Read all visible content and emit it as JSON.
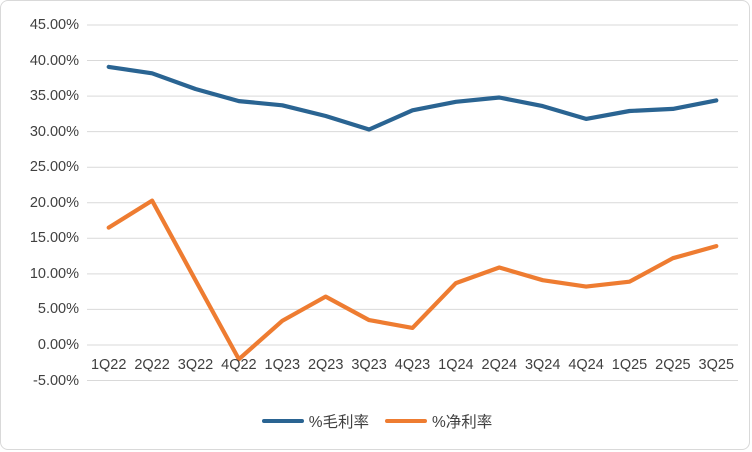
{
  "chart_data": {
    "type": "line",
    "title": "",
    "xlabel": "",
    "ylabel": "",
    "categories": [
      "1Q22",
      "2Q22",
      "3Q22",
      "4Q22",
      "1Q23",
      "2Q23",
      "3Q23",
      "4Q23",
      "1Q24",
      "2Q24",
      "3Q24",
      "4Q24",
      "1Q25",
      "2Q25",
      "3Q25"
    ],
    "series": [
      {
        "name": "%毛利率",
        "color": "#2A6492",
        "values": [
          39.1,
          38.2,
          36.0,
          34.3,
          33.7,
          32.2,
          30.3,
          33.0,
          34.2,
          34.8,
          33.6,
          31.8,
          32.9,
          33.2,
          34.4
        ]
      },
      {
        "name": "%净利率",
        "color": "#EE7C31",
        "values": [
          16.5,
          20.3,
          9.1,
          -2.0,
          3.4,
          6.8,
          3.5,
          2.4,
          8.7,
          10.9,
          9.1,
          8.2,
          8.9,
          12.2,
          13.9
        ]
      }
    ],
    "ylim": [
      -5,
      45
    ],
    "y_tick_step": 5,
    "y_tick_labels": [
      "45.00%",
      "40.00%",
      "35.00%",
      "30.00%",
      "25.00%",
      "20.00%",
      "15.00%",
      "10.00%",
      "5.00%",
      "0.00%",
      "-5.00%"
    ],
    "grid": true,
    "gridline_color": "#D9D9D9",
    "axis_label_color": "#404040",
    "background_color": "#FFFFFF",
    "border_color": "#D9D9D9",
    "legend_position": "bottom"
  }
}
